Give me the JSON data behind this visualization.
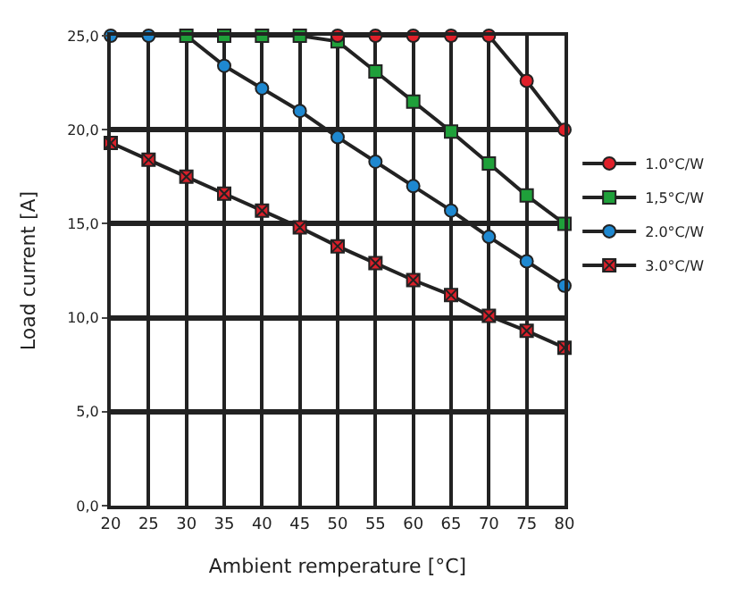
{
  "chart_data": {
    "type": "line",
    "xlabel": "Ambient remperature [°C]",
    "ylabel": "Load current [A]",
    "x": [
      20,
      25,
      30,
      35,
      40,
      45,
      50,
      55,
      60,
      65,
      70,
      75,
      80
    ],
    "xlim": [
      20,
      80
    ],
    "xticks": [
      20,
      25,
      30,
      35,
      40,
      45,
      50,
      55,
      60,
      65,
      70,
      75,
      80
    ],
    "ylim": [
      0,
      25
    ],
    "yticks": [
      {
        "value": 0,
        "label": "0,0"
      },
      {
        "value": 5,
        "label": "5,0"
      },
      {
        "value": 10,
        "label": "10,0"
      },
      {
        "value": 15,
        "label": "15,0"
      },
      {
        "value": 20,
        "label": "20,0"
      },
      {
        "value": 25,
        "label": "25,0"
      }
    ],
    "grid": true,
    "legend": "right",
    "series": [
      {
        "name": "1.0°C/W",
        "color": "#e0202a",
        "marker": "circle",
        "values": [
          null,
          null,
          null,
          null,
          null,
          null,
          25,
          25,
          25,
          25,
          25,
          22.6,
          20
        ]
      },
      {
        "name": "1,5°C/W",
        "color": "#1fa03a",
        "marker": "square",
        "values": [
          null,
          null,
          25,
          25,
          25,
          25,
          24.7,
          23.1,
          21.5,
          19.9,
          18.2,
          16.5,
          15
        ]
      },
      {
        "name": "2.0°C/W",
        "color": "#1e88d0",
        "marker": "circle",
        "values": [
          25,
          25,
          25,
          23.4,
          22.2,
          21.0,
          19.6,
          18.3,
          17.0,
          15.7,
          14.3,
          13.0,
          11.7
        ]
      },
      {
        "name": "3.0°C/W",
        "color": "#d8202a",
        "marker": "cross",
        "values": [
          19.3,
          18.4,
          17.5,
          16.6,
          15.7,
          14.8,
          13.8,
          12.9,
          12.0,
          11.2,
          10.1,
          9.3,
          8.4
        ]
      }
    ]
  }
}
